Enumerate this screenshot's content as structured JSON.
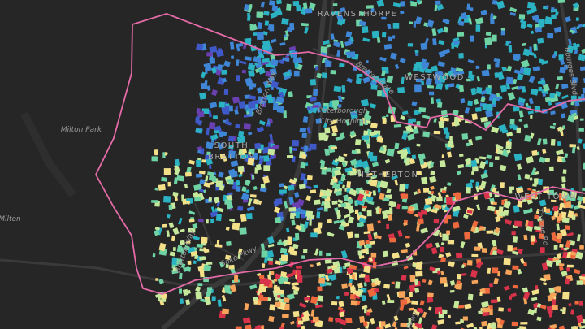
{
  "map": {
    "labels": [
      {
        "text": "RAVENSTHORPE"
      },
      {
        "text": "WESTWOOD"
      },
      {
        "text": "Bretton Gate"
      },
      {
        "text": "Bretton Way"
      },
      {
        "text": "Peterborough"
      },
      {
        "text": "City Hospital"
      },
      {
        "text": "Milton Park"
      },
      {
        "text": "SOUTH"
      },
      {
        "text": "BRETTON"
      },
      {
        "text": "NETHERTON"
      },
      {
        "text": "WEST TOWN"
      },
      {
        "text": "Milton"
      },
      {
        "text": "Bretton Way"
      },
      {
        "text": "Soke Pkwy"
      },
      {
        "text": "Bourges Blvd"
      },
      {
        "text": "Thorpe Rd"
      },
      {
        "text": "Pkwy"
      }
    ]
  }
}
